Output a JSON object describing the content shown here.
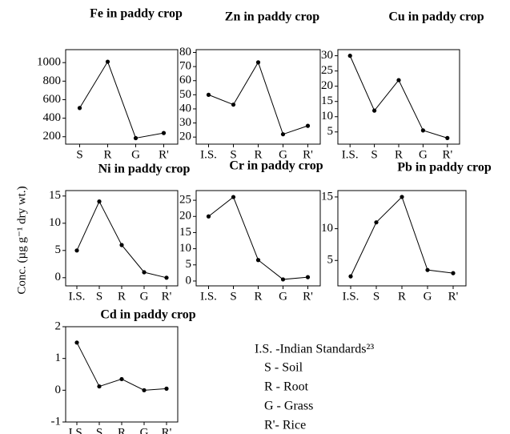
{
  "chart_data": [
    {
      "type": "line",
      "title": "Fe in paddy crop",
      "categories": [
        "S",
        "R",
        "G",
        "R'"
      ],
      "values": [
        510,
        1010,
        185,
        240
      ],
      "color": "#000000",
      "ylim": [
        120,
        1140
      ],
      "yticks": [
        200,
        400,
        600,
        800,
        1000
      ],
      "grid": false
    },
    {
      "type": "line",
      "title": "Zn in paddy crop",
      "categories": [
        "I.S.",
        "S",
        "R",
        "G",
        "R'"
      ],
      "values": [
        50,
        43,
        73,
        22,
        28
      ],
      "color": "#000000",
      "ylim": [
        15,
        82
      ],
      "yticks": [
        20,
        30,
        40,
        50,
        60,
        70,
        80
      ],
      "grid": false
    },
    {
      "type": "line",
      "title": "Cu in paddy crop",
      "categories": [
        "I.S.",
        "S",
        "R",
        "G",
        "R'"
      ],
      "values": [
        30,
        12,
        22,
        5.5,
        3
      ],
      "color": "#000000",
      "ylim": [
        1,
        32
      ],
      "yticks": [
        5,
        10,
        15,
        20,
        25,
        30
      ],
      "grid": false
    },
    {
      "type": "line",
      "title": "Ni in paddy crop",
      "categories": [
        "I.S.",
        "S",
        "R",
        "G",
        "R'"
      ],
      "values": [
        5,
        14,
        6,
        1,
        0
      ],
      "color": "#000000",
      "ylim": [
        -1.5,
        16
      ],
      "yticks": [
        0,
        5,
        10,
        15
      ],
      "grid": false
    },
    {
      "type": "line",
      "title": "Cr in paddy crop",
      "categories": [
        "I.S.",
        "S",
        "R",
        "G",
        "R'"
      ],
      "values": [
        20,
        26,
        6.5,
        0.5,
        1.2
      ],
      "color": "#000000",
      "ylim": [
        -1.5,
        28
      ],
      "yticks": [
        0,
        5,
        10,
        15,
        20,
        25
      ],
      "grid": false
    },
    {
      "type": "line",
      "title": "Pb in paddy crop",
      "categories": [
        "I.S.",
        "S",
        "R",
        "G",
        "R'"
      ],
      "values": [
        2.5,
        11,
        15,
        3.5,
        3
      ],
      "color": "#000000",
      "ylim": [
        1,
        16
      ],
      "yticks": [
        5,
        10,
        15
      ],
      "grid": false
    },
    {
      "type": "line",
      "title": "Cd in paddy crop",
      "categories": [
        "I.S.",
        "S",
        "R",
        "G",
        "R'"
      ],
      "values": [
        1.5,
        0.12,
        0.35,
        0,
        0.05
      ],
      "color": "#000000",
      "ylim": [
        -1,
        2
      ],
      "yticks": [
        -1,
        0,
        1,
        2
      ],
      "grid": false
    }
  ],
  "y_label": "Conc. (µg g⁻¹ dry wt.)",
  "key": [
    "I.S. -Indian Standards²³",
    "S - Soil",
    "R - Root",
    "G - Grass",
    "R'- Rice"
  ]
}
